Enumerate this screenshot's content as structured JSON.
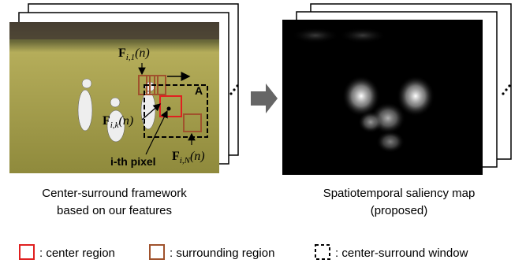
{
  "left_panel": {
    "labels": [
      {
        "symbol": "F",
        "subscript": "i,1",
        "argument": "(n)"
      },
      {
        "symbol": "F",
        "subscript": "i,k",
        "argument": "(n)"
      },
      {
        "symbol": "F",
        "subscript": "i,N",
        "argument": "(n)"
      }
    ],
    "region_label": "A",
    "pixel_label": "i-th pixel",
    "caption": [
      "Center-surround framework",
      "based on our features"
    ]
  },
  "right_panel": {
    "caption": [
      "Spatiotemporal saliency map",
      "(proposed)"
    ]
  },
  "legend": [
    ": center region",
    ": surrounding region",
    ": center-surround window"
  ]
}
